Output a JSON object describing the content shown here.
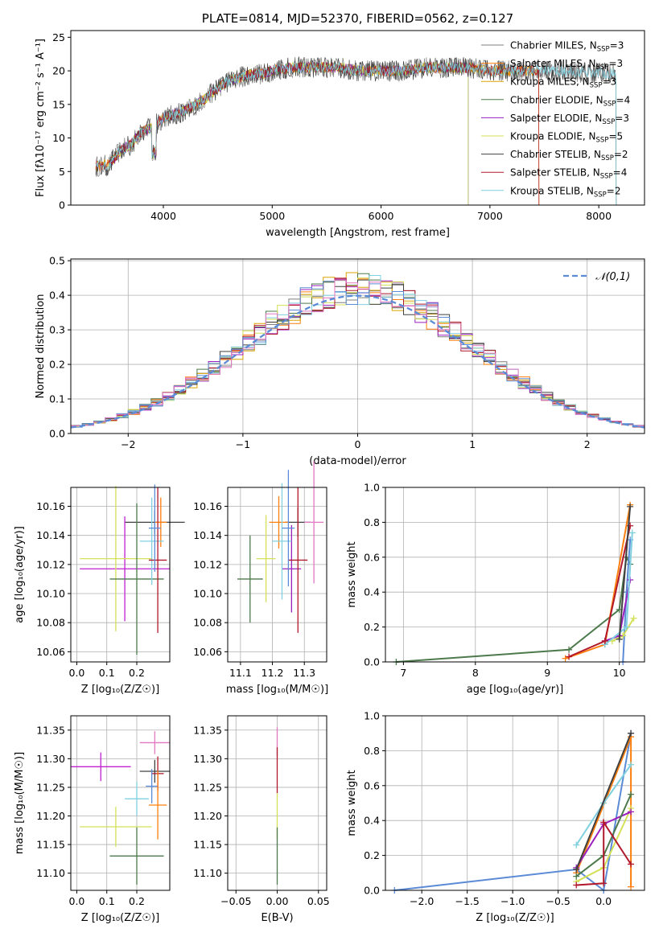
{
  "chart_data": [
    {
      "id": "spectrum",
      "type": "line",
      "title": "PLATE=0814, MJD=52370, FIBERID=0562, z=0.127",
      "xlabel": "wavelength [Angstrom, rest frame]",
      "ylabel": "Flux [fλ10⁻¹⁷ erg cm⁻² s⁻¹ A⁻¹]",
      "xlim": [
        3150,
        8420
      ],
      "ylim": [
        0,
        26
      ],
      "xticks": [
        4000,
        5000,
        6000,
        7000,
        8000
      ],
      "yticks": [
        0,
        5,
        10,
        15,
        20,
        25
      ],
      "data_x": [
        3380,
        3500,
        3600,
        3700,
        3800,
        3900,
        4000,
        4100,
        4200,
        4300,
        4400,
        4500,
        4600,
        4700,
        4800,
        4900,
        5000,
        5200,
        5400,
        5600,
        5800,
        6000,
        6200,
        6400,
        6600,
        6800,
        7000,
        7200,
        7400,
        7600,
        7800,
        8000,
        8160
      ],
      "data_y": [
        5.8,
        6.0,
        8.0,
        9.0,
        11.0,
        11.5,
        13.0,
        13.5,
        14.0,
        15.0,
        16.0,
        17.5,
        18.5,
        19.0,
        19.5,
        19.5,
        20.0,
        20.5,
        20.5,
        20.5,
        20.0,
        20.0,
        20.0,
        20.5,
        20.5,
        20.5,
        20.0,
        20.0,
        20.0,
        20.0,
        19.8,
        19.8,
        19.5
      ],
      "legend_placement": "top-right",
      "series": [
        {
          "name": "Chabrier MILES, N",
          "sub": "SSP",
          "suffix": "=3",
          "color": "#7f7f7f",
          "end": 8160
        },
        {
          "name": "Salpeter MILES, N",
          "sub": "SSP",
          "suffix": "=3",
          "color": "#ff7f0e",
          "end": 7450
        },
        {
          "name": "Kroupa MILES, N",
          "sub": "SSP",
          "suffix": "=3",
          "color": "#d9a400",
          "end": 7450
        },
        {
          "name": "Chabrier ELODIE, N",
          "sub": "SSP",
          "suffix": "=4",
          "color": "#4c7a4c",
          "end": 6800
        },
        {
          "name": "Salpeter ELODIE, N",
          "sub": "SSP",
          "suffix": "=3",
          "color": "#9b1fbf",
          "end": 6800
        },
        {
          "name": "Kroupa ELODIE, N",
          "sub": "SSP",
          "suffix": "=5",
          "color": "#d4e157",
          "end": 6800
        },
        {
          "name": "Chabrier STELIB, N",
          "sub": "SSP",
          "suffix": "=2",
          "color": "#404040",
          "end": 8160
        },
        {
          "name": "Salpeter STELIB, N",
          "sub": "SSP",
          "suffix": "=4",
          "color": "#b2182b",
          "end": 7450
        },
        {
          "name": "Kroupa STELIB, N",
          "sub": "SSP",
          "suffix": "=2",
          "color": "#80d0e0",
          "end": 8160
        }
      ]
    },
    {
      "id": "residuals",
      "type": "line",
      "title": "",
      "xlabel": "(data-model)/error",
      "ylabel": "Normed distribution",
      "xlim": [
        -2.5,
        2.5
      ],
      "ylim": [
        0,
        0.505
      ],
      "xticks": [
        -2,
        -1,
        0,
        1,
        2
      ],
      "yticks": [
        0.0,
        0.1,
        0.2,
        0.3,
        0.4,
        0.5
      ],
      "grid": true,
      "reference_curve": {
        "name": "𝒩(0,1)",
        "color": "#5b8bd6",
        "style": "dashed"
      },
      "legend_placement": "top-right",
      "hist_colors": [
        "#7f7f7f",
        "#ff7f0e",
        "#d9a400",
        "#4c7a4c",
        "#9b1fbf",
        "#d4e157",
        "#404040",
        "#b2182b",
        "#80d0e0",
        "#5b8bd6",
        "#e377c2"
      ]
    },
    {
      "id": "age-vs-Z",
      "type": "scatter",
      "xlabel": "Z [log₁₀(Z/Z☉)]",
      "ylabel": "age  [log₁₀(age/yr)]",
      "xlim": [
        -0.02,
        0.31
      ],
      "ylim": [
        10.053,
        10.173
      ],
      "xticks": [
        0.0,
        0.1,
        0.2
      ],
      "yticks": [
        10.06,
        10.08,
        10.1,
        10.12,
        10.14,
        10.16
      ],
      "grid": true,
      "points": [
        {
          "x": 0.26,
          "y": 10.149,
          "xerr": 0.1,
          "yerr": 0.008,
          "color": "#404040"
        },
        {
          "x": 0.28,
          "y": 10.149,
          "xerr": 0.02,
          "yerr": 0.017,
          "color": "#ff7f0e"
        },
        {
          "x": 0.16,
          "y": 10.117,
          "xerr": 0.15,
          "yerr": 0.036,
          "color": "#c020d0"
        },
        {
          "x": 0.13,
          "y": 10.124,
          "xerr": 0.12,
          "yerr": 0.05,
          "color": "#d4e157"
        },
        {
          "x": 0.2,
          "y": 10.11,
          "xerr": 0.09,
          "yerr": 0.052,
          "color": "#4c7a4c"
        },
        {
          "x": 0.25,
          "y": 10.136,
          "xerr": 0.04,
          "yerr": 0.03,
          "color": "#80d0e0"
        },
        {
          "x": 0.27,
          "y": 10.123,
          "xerr": 0.03,
          "yerr": 0.05,
          "color": "#b2182b"
        },
        {
          "x": 0.26,
          "y": 10.145,
          "xerr": 0.02,
          "yerr": 0.03,
          "color": "#5b8bd6"
        }
      ]
    },
    {
      "id": "age-vs-mass",
      "type": "scatter",
      "xlabel": "mass [log₁₀(M/M☉)]",
      "ylabel": "",
      "xlim": [
        11.06,
        11.37
      ],
      "ylim": [
        10.053,
        10.173
      ],
      "xticks": [
        11.1,
        11.2,
        11.3
      ],
      "yticks": [
        10.06,
        10.08,
        10.1,
        10.12,
        10.14,
        10.16
      ],
      "grid": true,
      "points": [
        {
          "x": 11.28,
          "y": 10.149,
          "xerr": 0.04,
          "yerr": 0.01,
          "color": "#404040"
        },
        {
          "x": 11.22,
          "y": 10.149,
          "xerr": 0.03,
          "yerr": 0.018,
          "color": "#ff7f0e"
        },
        {
          "x": 11.33,
          "y": 10.149,
          "xerr": 0.03,
          "yerr": 0.042,
          "color": "#e377c2"
        },
        {
          "x": 11.26,
          "y": 10.117,
          "xerr": 0.03,
          "yerr": 0.03,
          "color": "#9b1fbf"
        },
        {
          "x": 11.18,
          "y": 10.124,
          "xerr": 0.03,
          "yerr": 0.03,
          "color": "#d4e157"
        },
        {
          "x": 11.13,
          "y": 10.11,
          "xerr": 0.04,
          "yerr": 0.03,
          "color": "#4c7a4c"
        },
        {
          "x": 11.23,
          "y": 10.136,
          "xerr": 0.03,
          "yerr": 0.04,
          "color": "#80d0e0"
        },
        {
          "x": 11.28,
          "y": 10.123,
          "xerr": 0.03,
          "yerr": 0.05,
          "color": "#b2182b"
        },
        {
          "x": 11.25,
          "y": 10.145,
          "xerr": 0.02,
          "yerr": 0.04,
          "color": "#5b8bd6"
        }
      ]
    },
    {
      "id": "massweight-vs-age",
      "type": "line",
      "xlabel": "age  [log₁₀(age/yr)]",
      "ylabel": "mass weight",
      "xlim": [
        6.75,
        10.35
      ],
      "ylim": [
        0,
        1
      ],
      "xticks": [
        7,
        8,
        9,
        10
      ],
      "yticks": [
        0.0,
        0.2,
        0.4,
        0.6,
        0.8,
        1.0
      ],
      "grid": true,
      "series": [
        {
          "color": "#4c7a4c",
          "x": [
            6.9,
            9.3,
            10.0,
            10.1,
            10.15
          ],
          "y": [
            0.0,
            0.07,
            0.3,
            0.6,
            0.56
          ]
        },
        {
          "color": "#5b8bd6",
          "x": [
            10.05,
            10.1,
            10.15
          ],
          "y": [
            0.0,
            0.4,
            0.7
          ]
        },
        {
          "color": "#ff7f0e",
          "x": [
            9.25,
            9.8,
            10.15
          ],
          "y": [
            0.02,
            0.1,
            0.9
          ]
        },
        {
          "color": "#d4e157",
          "x": [
            9.9,
            10.05,
            10.2
          ],
          "y": [
            0.12,
            0.15,
            0.25
          ]
        },
        {
          "color": "#9b1fbf",
          "x": [
            9.8,
            10.0,
            10.15
          ],
          "y": [
            0.12,
            0.15,
            0.47
          ]
        },
        {
          "color": "#80d0e0",
          "x": [
            9.8,
            10.1,
            10.18
          ],
          "y": [
            0.1,
            0.2,
            0.74
          ]
        },
        {
          "color": "#b2182b",
          "x": [
            9.3,
            9.8,
            10.15
          ],
          "y": [
            0.03,
            0.12,
            0.78
          ]
        },
        {
          "color": "#404040",
          "x": [
            10.0,
            10.15
          ],
          "y": [
            0.13,
            0.89
          ]
        }
      ]
    },
    {
      "id": "mass-vs-Z",
      "type": "scatter",
      "xlabel": "Z [log₁₀(Z/Z☉)]",
      "ylabel": "mass [log₁₀(M/M☉)]",
      "xlim": [
        -0.02,
        0.31
      ],
      "ylim": [
        11.07,
        11.375
      ],
      "xticks": [
        0.0,
        0.1,
        0.2
      ],
      "yticks": [
        11.1,
        11.15,
        11.2,
        11.25,
        11.3,
        11.35
      ],
      "grid": true,
      "points": [
        {
          "x": 0.26,
          "y": 11.328,
          "xerr": 0.05,
          "yerr": 0.02,
          "color": "#e377c2"
        },
        {
          "x": 0.08,
          "y": 11.286,
          "xerr": 0.1,
          "yerr": 0.025,
          "color": "#c020d0"
        },
        {
          "x": 0.26,
          "y": 11.278,
          "xerr": 0.05,
          "yerr": 0.02,
          "color": "#404040"
        },
        {
          "x": 0.27,
          "y": 11.274,
          "xerr": 0.02,
          "yerr": 0.03,
          "color": "#b2182b"
        },
        {
          "x": 0.25,
          "y": 11.252,
          "xerr": 0.02,
          "yerr": 0.03,
          "color": "#5b8bd6"
        },
        {
          "x": 0.2,
          "y": 11.23,
          "xerr": 0.04,
          "yerr": 0.03,
          "color": "#80d0e0"
        },
        {
          "x": 0.27,
          "y": 11.219,
          "xerr": 0.03,
          "yerr": 0.06,
          "color": "#ff7f0e"
        },
        {
          "x": 0.13,
          "y": 11.181,
          "xerr": 0.12,
          "yerr": 0.035,
          "color": "#d4e157"
        },
        {
          "x": 0.2,
          "y": 11.13,
          "xerr": 0.09,
          "yerr": 0.05,
          "color": "#4c7a4c"
        }
      ]
    },
    {
      "id": "mass-vs-ebv",
      "type": "scatter",
      "xlabel": "E(B-V)",
      "ylabel": "",
      "xlim": [
        -0.06,
        0.06
      ],
      "ylim": [
        11.07,
        11.375
      ],
      "xticks": [
        -0.05,
        0.0,
        0.05
      ],
      "yticks": [
        11.1,
        11.15,
        11.2,
        11.25,
        11.3,
        11.35
      ],
      "grid": true,
      "points": [
        {
          "x": 0.0,
          "y": 11.33,
          "xerr": 0,
          "yerr": 0.025,
          "color": "#e377c2"
        },
        {
          "x": 0.0,
          "y": 11.28,
          "xerr": 0,
          "yerr": 0.04,
          "color": "#b2182b"
        },
        {
          "x": 0.0,
          "y": 11.2,
          "xerr": 0,
          "yerr": 0.04,
          "color": "#d4e157"
        },
        {
          "x": 0.0,
          "y": 11.13,
          "xerr": 0,
          "yerr": 0.05,
          "color": "#4c7a4c"
        }
      ]
    },
    {
      "id": "massweight-vs-Z",
      "type": "line",
      "xlabel": "Z [log₁₀(Z/Z☉)]",
      "ylabel": "mass weight",
      "xlim": [
        -2.4,
        0.45
      ],
      "ylim": [
        0,
        1
      ],
      "xticks": [
        -2.0,
        -1.5,
        -1.0,
        -0.5,
        0.0
      ],
      "yticks": [
        0.0,
        0.2,
        0.4,
        0.6,
        0.8,
        1.0
      ],
      "grid": true,
      "series": [
        {
          "color": "#5b8bd6",
          "x": [
            -2.3,
            -0.3,
            0.0,
            0.3
          ],
          "y": [
            0.0,
            0.12,
            0.0,
            0.9
          ]
        },
        {
          "color": "#ff7f0e",
          "x": [
            -0.3,
            0.3,
            0.3
          ],
          "y": [
            0.1,
            0.88,
            0.02
          ]
        },
        {
          "color": "#d4e157",
          "x": [
            -0.3,
            0.0,
            0.3
          ],
          "y": [
            0.05,
            0.13,
            0.47
          ]
        },
        {
          "color": "#9b1fbf",
          "x": [
            -0.3,
            0.0,
            0.3
          ],
          "y": [
            0.13,
            0.38,
            0.45
          ]
        },
        {
          "color": "#4c7a4c",
          "x": [
            -0.3,
            0.0,
            0.3
          ],
          "y": [
            0.08,
            0.2,
            0.55
          ]
        },
        {
          "color": "#80d0e0",
          "x": [
            -0.3,
            0.0,
            0.3
          ],
          "y": [
            0.26,
            0.5,
            0.72
          ]
        },
        {
          "color": "#b2182b",
          "x": [
            -0.3,
            0.0,
            0.0,
            0.3
          ],
          "y": [
            0.03,
            0.04,
            0.39,
            0.15
          ]
        },
        {
          "color": "#404040",
          "x": [
            -0.3,
            0.3
          ],
          "y": [
            0.12,
            0.9
          ]
        }
      ]
    }
  ]
}
